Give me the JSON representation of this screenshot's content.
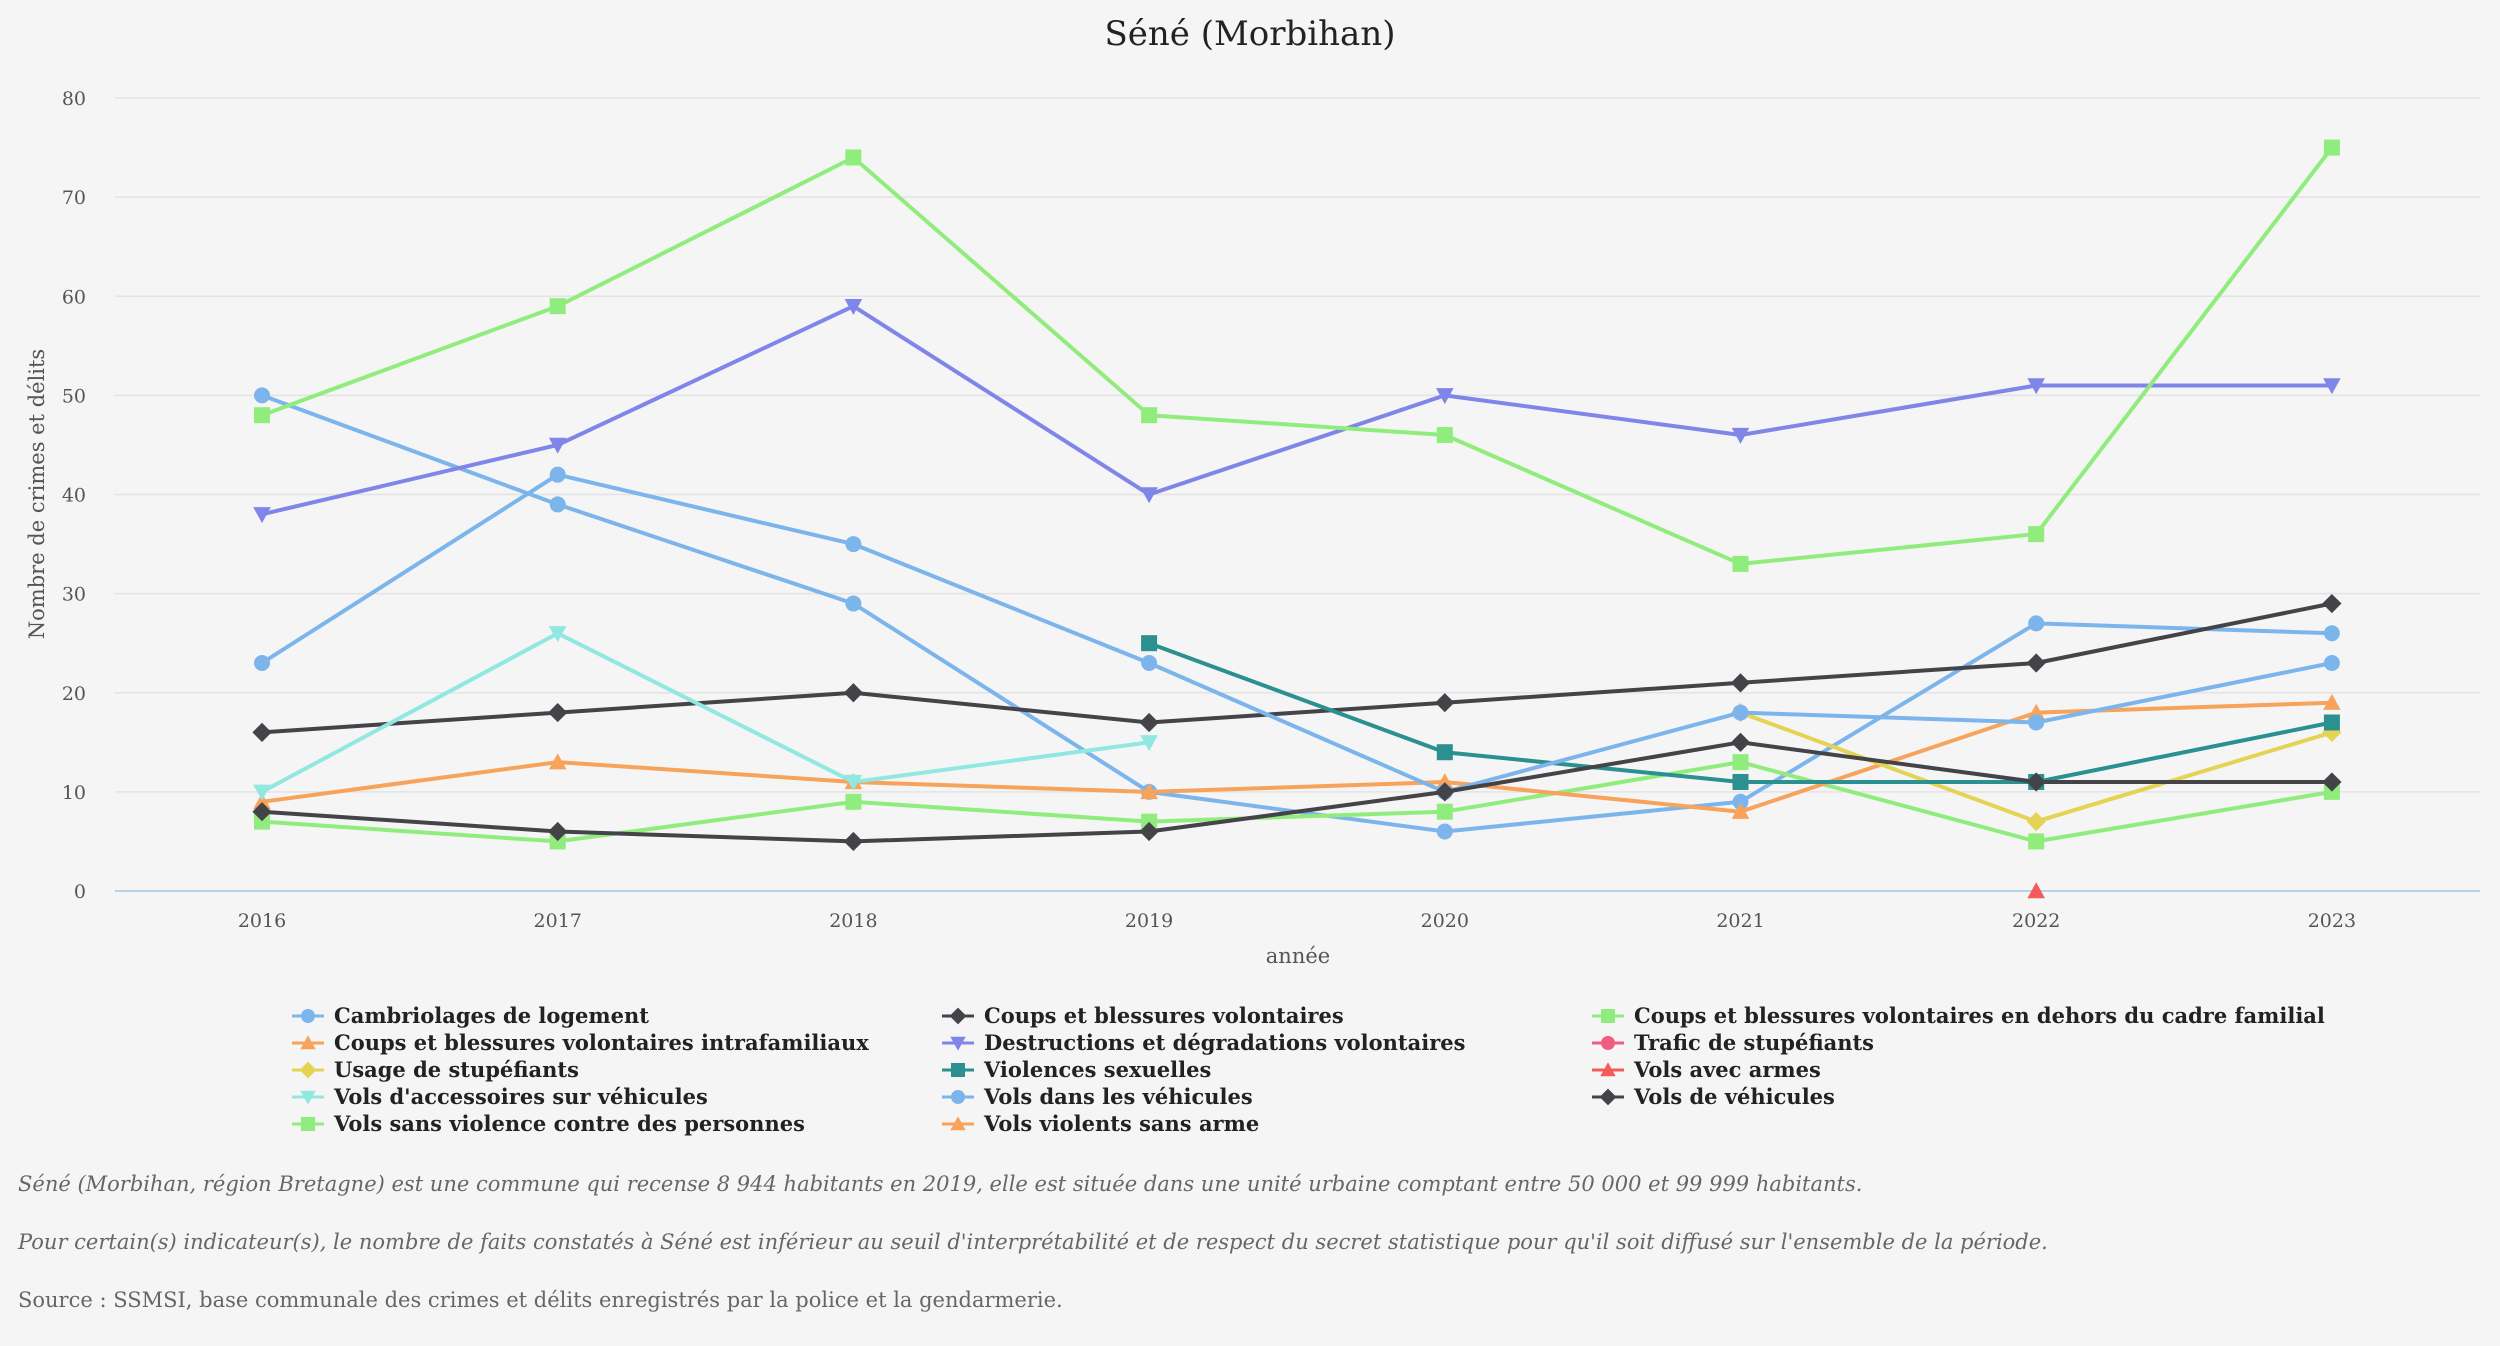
{
  "chart_data": {
    "type": "line",
    "title": "Séné (Morbihan)",
    "xlabel": "année",
    "ylabel": "Nombre de crimes et délits",
    "ylim": [
      0,
      80
    ],
    "yticks": [
      0,
      10,
      20,
      30,
      40,
      50,
      60,
      70,
      80
    ],
    "categories": [
      "2016",
      "2017",
      "2018",
      "2019",
      "2020",
      "2021",
      "2022",
      "2023"
    ],
    "grid": true,
    "legend_position": "bottom",
    "series": [
      {
        "name": "Cambriolages de logement",
        "color": "#7cb5ec",
        "marker": "circle",
        "values": [
          50,
          39,
          29,
          10,
          6,
          9,
          27,
          26
        ]
      },
      {
        "name": "Coups et blessures volontaires",
        "color": "#434348",
        "marker": "diamond",
        "values": [
          16,
          18,
          20,
          17,
          19,
          21,
          23,
          29
        ]
      },
      {
        "name": "Coups et blessures volontaires en dehors du cadre familial",
        "color": "#90ed7d",
        "marker": "square",
        "values": [
          7,
          5,
          9,
          7,
          8,
          13,
          5,
          10
        ]
      },
      {
        "name": "Coups et blessures volontaires intrafamiliaux",
        "color": "#f7a35c",
        "marker": "triangle",
        "values": [
          9,
          13,
          11,
          10,
          11,
          8,
          18,
          19
        ]
      },
      {
        "name": "Destructions et dégradations volontaires",
        "color": "#8085e9",
        "marker": "triangle-down",
        "values": [
          38,
          45,
          59,
          40,
          50,
          46,
          51,
          51
        ]
      },
      {
        "name": "Trafic de stupéfiants",
        "color": "#f15c80",
        "marker": "circle",
        "values": [
          null,
          null,
          null,
          null,
          null,
          null,
          null,
          null
        ]
      },
      {
        "name": "Usage de stupéfiants",
        "color": "#e4d354",
        "marker": "diamond",
        "values": [
          null,
          null,
          null,
          null,
          null,
          18,
          7,
          16
        ]
      },
      {
        "name": "Violences sexuelles",
        "color": "#2b908f",
        "marker": "square",
        "values": [
          null,
          null,
          null,
          25,
          14,
          11,
          11,
          17
        ]
      },
      {
        "name": "Vols avec armes",
        "color": "#f45b5b",
        "marker": "triangle",
        "values": [
          null,
          null,
          null,
          null,
          null,
          null,
          0,
          null
        ]
      },
      {
        "name": "Vols d'accessoires sur véhicules",
        "color": "#91e8e1",
        "marker": "triangle-down",
        "values": [
          10,
          26,
          11,
          15,
          null,
          null,
          null,
          null
        ]
      },
      {
        "name": "Vols dans les véhicules",
        "color": "#7cb5ec",
        "marker": "circle",
        "values": [
          23,
          42,
          35,
          23,
          10,
          18,
          17,
          23
        ]
      },
      {
        "name": "Vols de véhicules",
        "color": "#434348",
        "marker": "diamond",
        "values": [
          8,
          6,
          5,
          6,
          10,
          15,
          11,
          11
        ]
      },
      {
        "name": "Vols sans violence contre des personnes",
        "color": "#90ed7d",
        "marker": "square",
        "values": [
          48,
          59,
          74,
          48,
          46,
          33,
          36,
          75
        ]
      },
      {
        "name": "Vols violents sans arme",
        "color": "#f7a35c",
        "marker": "triangle",
        "values": [
          null,
          null,
          null,
          null,
          null,
          null,
          null,
          null
        ]
      }
    ]
  },
  "notes": {
    "description": "Séné (Morbihan, région Bretagne) est une commune qui recense 8 944 habitants en 2019, elle est située dans une unité urbaine comptant entre 50 000 et 99 999 habitants.",
    "threshold": "Pour certain(s) indicateur(s), le nombre de faits constatés à Séné est inférieur au seuil d'interprétabilité et de respect du secret statistique pour qu'il soit diffusé sur l'ensemble de la période.",
    "source": "Source : SSMSI, base communale des crimes et délits enregistrés par la police et la gendarmerie."
  }
}
